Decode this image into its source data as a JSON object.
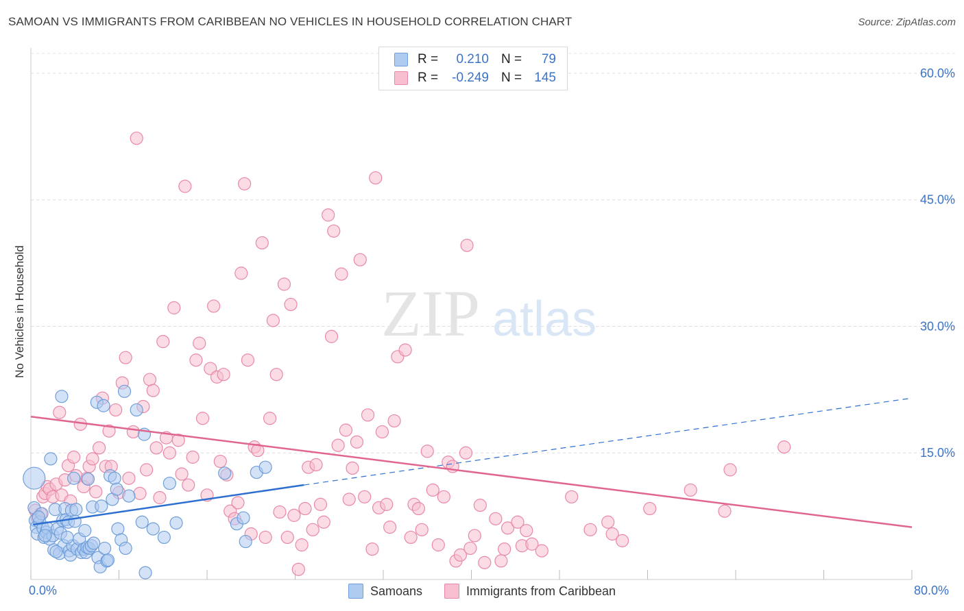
{
  "header": {
    "title": "SAMOAN VS IMMIGRANTS FROM CARIBBEAN NO VEHICLES IN HOUSEHOLD CORRELATION CHART",
    "source": "Source: ZipAtlas.com"
  },
  "watermark": {
    "zip": "ZIP",
    "atlas": "atlas"
  },
  "legend": {
    "rows": [
      {
        "r_label": "R =",
        "r_value": "0.210",
        "n_label": "N =",
        "n_value": "79",
        "color": "#aecbf0",
        "border": "#6f9ed8"
      },
      {
        "r_label": "R =",
        "r_value": "-0.249",
        "n_label": "N =",
        "n_value": "145",
        "color": "#f7bfd0",
        "border": "#e888a8"
      }
    ]
  },
  "chart_data": {
    "type": "scatter",
    "title": "SAMOAN VS IMMIGRANTS FROM CARIBBEAN NO VEHICLES IN HOUSEHOLD CORRELATION CHART",
    "xlabel": "",
    "ylabel": "No Vehicles in Household",
    "xlim": [
      0,
      80
    ],
    "ylim": [
      0,
      63
    ],
    "x_tick_labels": [
      "0.0%",
      "80.0%"
    ],
    "y_ticks": [
      15,
      30,
      45,
      60
    ],
    "y_tick_labels": [
      "15.0%",
      "30.0%",
      "45.0%",
      "60.0%"
    ],
    "grid": true,
    "legend_position": "top-center",
    "series": [
      {
        "name": "Samoans",
        "color": "#6f9ed8",
        "fill": "#aecbf0",
        "trend": {
          "x0": 0.2,
          "y0": 6.5,
          "x1": 24.8,
          "y1": 11.2,
          "dash_x1": 80,
          "dash_y1": 21.5,
          "color": "#2d6fd0"
        },
        "points": [
          [
            0.3,
            12.0
          ],
          [
            0.3,
            8.5
          ],
          [
            0.4,
            7.0
          ],
          [
            0.5,
            6.2
          ],
          [
            0.6,
            5.4
          ],
          [
            0.8,
            6.8
          ],
          [
            1.0,
            7.8
          ],
          [
            1.1,
            6.1
          ],
          [
            1.2,
            5.0
          ],
          [
            1.4,
            5.6
          ],
          [
            1.5,
            6.1
          ],
          [
            1.7,
            4.8
          ],
          [
            1.8,
            14.3
          ],
          [
            2.0,
            5.2
          ],
          [
            2.1,
            3.5
          ],
          [
            2.2,
            8.3
          ],
          [
            2.4,
            6.0
          ],
          [
            2.6,
            3.1
          ],
          [
            2.7,
            5.5
          ],
          [
            2.8,
            21.7
          ],
          [
            2.9,
            7.0
          ],
          [
            3.0,
            4.0
          ],
          [
            3.1,
            8.4
          ],
          [
            3.2,
            7.1
          ],
          [
            3.4,
            6.8
          ],
          [
            3.5,
            3.4
          ],
          [
            3.6,
            2.9
          ],
          [
            3.7,
            8.2
          ],
          [
            3.8,
            4.0
          ],
          [
            3.9,
            12.0
          ],
          [
            4.0,
            6.9
          ],
          [
            4.2,
            3.6
          ],
          [
            4.4,
            4.8
          ],
          [
            4.6,
            3.2
          ],
          [
            4.8,
            3.6
          ],
          [
            4.9,
            5.8
          ],
          [
            5.0,
            3.2
          ],
          [
            5.1,
            3.8
          ],
          [
            5.2,
            11.9
          ],
          [
            5.3,
            3.7
          ],
          [
            5.5,
            4.0
          ],
          [
            5.6,
            8.6
          ],
          [
            6.0,
            21.0
          ],
          [
            6.1,
            2.6
          ],
          [
            6.3,
            1.5
          ],
          [
            6.4,
            8.7
          ],
          [
            6.6,
            20.6
          ],
          [
            6.7,
            3.7
          ],
          [
            6.9,
            2.2
          ],
          [
            7.2,
            12.3
          ],
          [
            7.4,
            9.5
          ],
          [
            7.6,
            12.0
          ],
          [
            7.8,
            10.7
          ],
          [
            7.9,
            6.0
          ],
          [
            8.2,
            4.7
          ],
          [
            8.5,
            22.3
          ],
          [
            8.6,
            3.7
          ],
          [
            8.9,
            9.9
          ],
          [
            9.6,
            20.1
          ],
          [
            10.1,
            6.8
          ],
          [
            10.3,
            17.2
          ],
          [
            10.4,
            0.8
          ],
          [
            11.1,
            6.0
          ],
          [
            12.1,
            5.0
          ],
          [
            12.6,
            11.4
          ],
          [
            13.2,
            6.7
          ],
          [
            17.6,
            12.6
          ],
          [
            18.7,
            6.6
          ],
          [
            19.3,
            7.3
          ],
          [
            19.5,
            4.5
          ],
          [
            20.5,
            12.7
          ],
          [
            21.3,
            13.3
          ],
          [
            0.7,
            7.4
          ],
          [
            1.3,
            5.2
          ],
          [
            2.3,
            3.3
          ],
          [
            3.3,
            5.0
          ],
          [
            4.1,
            8.3
          ],
          [
            5.7,
            4.3
          ],
          [
            7.0,
            2.3
          ]
        ]
      },
      {
        "name": "Immigrants from Caribbean",
        "color": "#e888a8",
        "fill": "#f7bfd0",
        "trend": {
          "x0": 0,
          "y0": 19.3,
          "x1": 80,
          "y1": 6.2,
          "color": "#e0658f"
        },
        "points": [
          [
            0.4,
            8.2
          ],
          [
            0.6,
            7.3
          ],
          [
            0.9,
            7.8
          ],
          [
            1.1,
            9.8
          ],
          [
            1.3,
            10.2
          ],
          [
            1.5,
            11.0
          ],
          [
            1.7,
            10.7
          ],
          [
            2.0,
            9.8
          ],
          [
            2.3,
            11.3
          ],
          [
            2.6,
            19.8
          ],
          [
            2.8,
            10.0
          ],
          [
            3.1,
            11.8
          ],
          [
            3.4,
            13.5
          ],
          [
            3.6,
            9.3
          ],
          [
            3.9,
            14.5
          ],
          [
            4.1,
            12.3
          ],
          [
            4.5,
            18.4
          ],
          [
            4.8,
            11.0
          ],
          [
            5.1,
            12.0
          ],
          [
            5.3,
            13.4
          ],
          [
            5.6,
            14.3
          ],
          [
            5.9,
            10.4
          ],
          [
            6.2,
            15.6
          ],
          [
            6.5,
            21.5
          ],
          [
            6.8,
            13.4
          ],
          [
            7.1,
            17.6
          ],
          [
            7.3,
            13.4
          ],
          [
            7.7,
            20.1
          ],
          [
            8.0,
            10.3
          ],
          [
            8.3,
            23.3
          ],
          [
            8.6,
            26.3
          ],
          [
            8.9,
            12.0
          ],
          [
            9.3,
            17.5
          ],
          [
            9.6,
            52.3
          ],
          [
            9.9,
            10.2
          ],
          [
            10.2,
            20.5
          ],
          [
            10.5,
            13.0
          ],
          [
            10.8,
            23.7
          ],
          [
            11.1,
            22.4
          ],
          [
            11.4,
            15.6
          ],
          [
            11.7,
            9.7
          ],
          [
            12.0,
            28.2
          ],
          [
            12.3,
            16.8
          ],
          [
            12.6,
            15.0
          ],
          [
            13.0,
            32.2
          ],
          [
            13.4,
            16.5
          ],
          [
            13.7,
            12.5
          ],
          [
            14.0,
            46.6
          ],
          [
            14.3,
            11.2
          ],
          [
            14.7,
            14.5
          ],
          [
            15.0,
            26.0
          ],
          [
            15.3,
            28.0
          ],
          [
            15.6,
            19.1
          ],
          [
            16.0,
            10.0
          ],
          [
            16.3,
            25.0
          ],
          [
            16.6,
            32.4
          ],
          [
            16.9,
            24.0
          ],
          [
            17.2,
            14.0
          ],
          [
            17.5,
            24.3
          ],
          [
            17.8,
            12.4
          ],
          [
            18.1,
            8.1
          ],
          [
            18.5,
            7.2
          ],
          [
            18.8,
            9.1
          ],
          [
            19.1,
            36.3
          ],
          [
            19.4,
            46.9
          ],
          [
            19.7,
            26.0
          ],
          [
            20.0,
            5.4
          ],
          [
            20.3,
            15.7
          ],
          [
            20.6,
            15.3
          ],
          [
            21.0,
            39.9
          ],
          [
            21.3,
            5.0
          ],
          [
            21.7,
            19.1
          ],
          [
            22.0,
            30.7
          ],
          [
            22.3,
            24.3
          ],
          [
            22.6,
            8.0
          ],
          [
            23.0,
            35.0
          ],
          [
            23.3,
            5.0
          ],
          [
            23.6,
            32.6
          ],
          [
            23.9,
            7.6
          ],
          [
            24.3,
            1.2
          ],
          [
            24.6,
            4.1
          ],
          [
            24.9,
            8.4
          ],
          [
            25.2,
            13.3
          ],
          [
            25.6,
            5.9
          ],
          [
            25.9,
            13.6
          ],
          [
            26.3,
            8.9
          ],
          [
            26.6,
            6.8
          ],
          [
            27.0,
            43.2
          ],
          [
            27.3,
            28.8
          ],
          [
            27.5,
            41.3
          ],
          [
            27.9,
            15.9
          ],
          [
            28.2,
            36.2
          ],
          [
            28.6,
            17.7
          ],
          [
            28.9,
            9.5
          ],
          [
            29.2,
            13.2
          ],
          [
            29.6,
            16.3
          ],
          [
            29.9,
            37.9
          ],
          [
            30.3,
            9.8
          ],
          [
            30.6,
            19.5
          ],
          [
            31.0,
            3.6
          ],
          [
            31.3,
            47.6
          ],
          [
            31.6,
            8.5
          ],
          [
            31.9,
            17.5
          ],
          [
            32.3,
            8.9
          ],
          [
            32.6,
            6.2
          ],
          [
            33.0,
            18.8
          ],
          [
            33.3,
            26.4
          ],
          [
            34.0,
            27.2
          ],
          [
            34.5,
            5.0
          ],
          [
            34.8,
            8.9
          ],
          [
            35.2,
            8.4
          ],
          [
            35.5,
            5.9
          ],
          [
            36.0,
            15.2
          ],
          [
            36.5,
            10.6
          ],
          [
            37.0,
            4.1
          ],
          [
            37.5,
            9.8
          ],
          [
            37.9,
            13.9
          ],
          [
            38.3,
            13.4
          ],
          [
            38.6,
            2.2
          ],
          [
            39.0,
            2.9
          ],
          [
            39.5,
            15.0
          ],
          [
            39.9,
            3.7
          ],
          [
            40.3,
            5.2
          ],
          [
            40.8,
            8.8
          ],
          [
            41.2,
            2.0
          ],
          [
            42.2,
            7.2
          ],
          [
            42.7,
            2.2
          ],
          [
            43.0,
            3.6
          ],
          [
            43.3,
            6.1
          ],
          [
            44.2,
            6.8
          ],
          [
            44.6,
            4.0
          ],
          [
            45.0,
            5.8
          ],
          [
            45.5,
            4.2
          ],
          [
            46.4,
            3.4
          ],
          [
            49.1,
            9.8
          ],
          [
            50.8,
            5.9
          ],
          [
            52.4,
            6.8
          ],
          [
            52.8,
            5.4
          ],
          [
            53.7,
            4.6
          ],
          [
            56.2,
            8.4
          ],
          [
            59.9,
            10.6
          ],
          [
            63.0,
            8.1
          ],
          [
            63.5,
            13.0
          ],
          [
            68.4,
            15.7
          ],
          [
            39.6,
            39.6
          ]
        ]
      }
    ]
  }
}
